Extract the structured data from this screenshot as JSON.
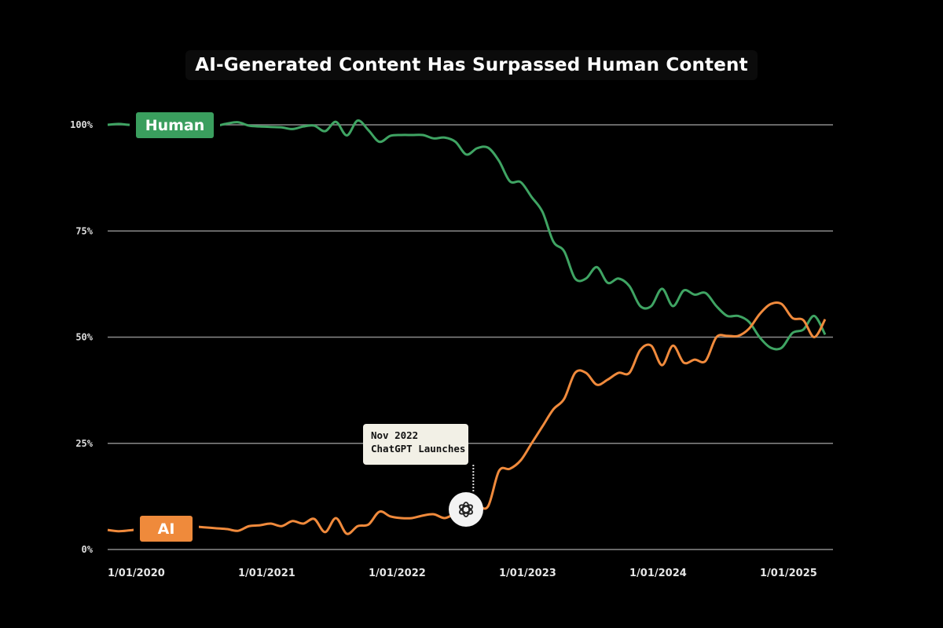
{
  "chart_data": {
    "type": "line",
    "title": "AI-Generated Content Has Surpassed Human Content",
    "xlabel": "",
    "ylabel": "",
    "ylim": [
      0,
      100
    ],
    "xlim": [
      "2020-01",
      "2025-07"
    ],
    "grid": "horizontal",
    "y_ticks": [
      "0%",
      "25%",
      "50%",
      "75%",
      "100%"
    ],
    "y_tick_values": [
      0,
      25,
      50,
      75,
      100
    ],
    "x_ticks": [
      "1/01/2020",
      "1/01/2021",
      "1/01/2022",
      "1/01/2023",
      "1/01/2024",
      "1/01/2025"
    ],
    "x_tick_values": [
      "2020-01",
      "2021-01",
      "2022-01",
      "2023-01",
      "2024-01",
      "2025-01"
    ],
    "x": [
      "2020-01",
      "2020-02",
      "2020-03",
      "2020-04",
      "2020-05",
      "2020-06",
      "2020-07",
      "2020-08",
      "2020-09",
      "2020-10",
      "2020-11",
      "2020-12",
      "2021-01",
      "2021-02",
      "2021-03",
      "2021-04",
      "2021-05",
      "2021-06",
      "2021-07",
      "2021-08",
      "2021-09",
      "2021-10",
      "2021-11",
      "2021-12",
      "2022-01",
      "2022-02",
      "2022-03",
      "2022-04",
      "2022-05",
      "2022-06",
      "2022-07",
      "2022-08",
      "2022-09",
      "2022-10",
      "2022-11",
      "2022-12",
      "2023-01",
      "2023-02",
      "2023-03",
      "2023-04",
      "2023-05",
      "2023-06",
      "2023-07",
      "2023-08",
      "2023-09",
      "2023-10",
      "2023-11",
      "2023-12",
      "2024-01",
      "2024-02",
      "2024-03",
      "2024-04",
      "2024-05",
      "2024-06",
      "2024-07",
      "2024-08",
      "2024-09",
      "2024-10",
      "2024-11",
      "2024-12",
      "2025-01",
      "2025-02",
      "2025-03",
      "2025-04",
      "2025-05",
      "2025-06",
      "2025-07"
    ],
    "series": [
      {
        "name": "Human",
        "color": "#3fa463",
        "values": [
          100,
          100.2,
          100,
          100,
          100,
          100,
          100,
          100,
          100,
          100,
          99.8,
          100.3,
          100.6,
          99.8,
          99.6,
          99.5,
          99.4,
          99,
          99.6,
          99.8,
          98.5,
          100.7,
          97.5,
          101,
          98.7,
          96,
          97.4,
          97.6,
          97.6,
          97.6,
          96.8,
          97,
          96,
          93,
          94.5,
          94.6,
          91.5,
          86.7,
          86.5,
          83,
          79.5,
          72.5,
          70.2,
          63.8,
          63.8,
          66.5,
          62.8,
          63.8,
          62,
          57.3,
          57.3,
          61.4,
          57.3,
          61,
          60,
          60.4,
          57.3,
          55,
          55,
          53.6,
          49.9,
          47.5,
          47.5,
          51,
          51.8,
          55,
          50.6
        ]
      },
      {
        "name": "AI",
        "color": "#f08a3c",
        "values": [
          4.6,
          4.3,
          4.5,
          4.8,
          5,
          5.2,
          5.4,
          5.5,
          5.4,
          5.2,
          5,
          4.8,
          4.4,
          5.5,
          5.7,
          6.1,
          5.5,
          6.7,
          6.1,
          7.2,
          4.1,
          7.4,
          3.7,
          5.5,
          5.9,
          8.9,
          7.8,
          7.4,
          7.4,
          8,
          8.3,
          7.4,
          8.5,
          9.2,
          10.2,
          10.2,
          18.5,
          19,
          21,
          25,
          29,
          33,
          35.5,
          41.6,
          41.6,
          38.8,
          40,
          41.6,
          41.6,
          47,
          48,
          43.4,
          48,
          44,
          44.7,
          44.4,
          50,
          50.3,
          50.3,
          52,
          55.5,
          57.8,
          57.8,
          54.5,
          54,
          50,
          54.2
        ]
      }
    ],
    "annotation": {
      "date": "2022-11",
      "line1": "Nov 2022",
      "line2": "ChatGPT Launches",
      "icon": "openai-logo-icon"
    }
  }
}
